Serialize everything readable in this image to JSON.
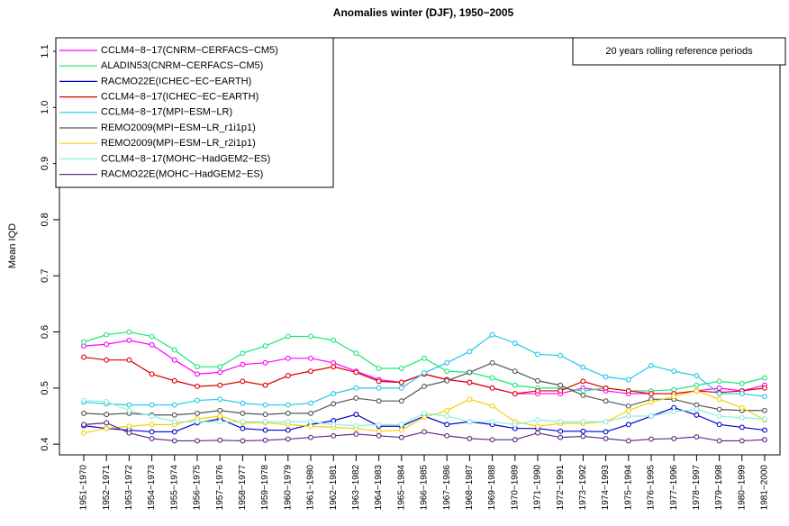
{
  "chart_data": {
    "type": "line",
    "title": "Anomalies winter (DJF), 1950−2005",
    "y_label": "Mean IQD",
    "annotation": "20 years rolling reference periods",
    "categories": [
      "1951−1970",
      "1952−1971",
      "1953−1972",
      "1954−1973",
      "1955−1974",
      "1956−1975",
      "1957−1976",
      "1958−1977",
      "1959−1978",
      "1960−1979",
      "1961−1980",
      "1962−1981",
      "1963−1982",
      "1964−1983",
      "1965−1984",
      "1966−1985",
      "1967−1986",
      "1968−1987",
      "1969−1988",
      "1970−1989",
      "1971−1990",
      "1972−1991",
      "1973−1992",
      "1974−1993",
      "1975−1994",
      "1976−1995",
      "1977−1996",
      "1978−1997",
      "1979−1998",
      "1980−1999",
      "1981−2000"
    ],
    "ylim": [
      0.381,
      1.124
    ],
    "yticks": [
      0.4,
      0.5,
      0.6,
      0.7,
      0.8,
      0.9,
      {
        "value": 1,
        "label": "1.0"
      },
      1.1
    ],
    "legend_position": "top-left",
    "series": [
      {
        "name": "CCLM4−8−17(CNRM−CERFACS−CM5)",
        "color": "#ff00ff",
        "values": [
          0.575,
          0.578,
          0.585,
          0.577,
          0.55,
          0.525,
          0.528,
          0.542,
          0.545,
          0.553,
          0.553,
          0.545,
          0.53,
          0.515,
          0.51,
          0.525,
          0.515,
          0.51,
          0.5,
          0.49,
          0.49,
          0.49,
          0.5,
          0.495,
          0.49,
          0.49,
          0.49,
          0.495,
          0.5,
          0.495,
          0.505
        ]
      },
      {
        "name": "ALADIN53(CNRM−CERFACS−CM5)",
        "color": "#1ee67a",
        "values": [
          0.582,
          0.595,
          0.6,
          0.592,
          0.568,
          0.538,
          0.538,
          0.562,
          0.575,
          0.592,
          0.592,
          0.585,
          0.562,
          0.535,
          0.535,
          0.553,
          0.53,
          0.528,
          0.518,
          0.505,
          0.5,
          0.5,
          0.495,
          0.5,
          0.495,
          0.495,
          0.497,
          0.505,
          0.512,
          0.508,
          0.518
        ]
      },
      {
        "name": "RACMO22E(ICHEC−EC−EARTH)",
        "color": "#0000cc",
        "values": [
          0.433,
          0.428,
          0.425,
          0.422,
          0.422,
          0.438,
          0.445,
          0.428,
          0.425,
          0.425,
          0.435,
          0.442,
          0.453,
          0.432,
          0.432,
          0.45,
          0.435,
          0.44,
          0.435,
          0.428,
          0.428,
          0.423,
          0.423,
          0.422,
          0.435,
          0.45,
          0.465,
          0.452,
          0.435,
          0.43,
          0.425
        ]
      },
      {
        "name": "CCLM4−8−17(ICHEC−EC−EARTH)",
        "color": "#dd0000",
        "values": [
          0.555,
          0.55,
          0.55,
          0.525,
          0.513,
          0.503,
          0.505,
          0.512,
          0.505,
          0.522,
          0.53,
          0.538,
          0.528,
          0.512,
          0.51,
          0.525,
          0.515,
          0.51,
          0.5,
          0.49,
          0.495,
          0.495,
          0.512,
          0.5,
          0.495,
          0.49,
          0.49,
          0.495,
          0.492,
          0.495,
          0.5
        ]
      },
      {
        "name": "CCLM4−8−17(MPI−ESM−LR)",
        "color": "#1ec8e8",
        "values": [
          0.475,
          0.472,
          0.47,
          0.47,
          0.47,
          0.478,
          0.48,
          0.473,
          0.47,
          0.47,
          0.473,
          0.49,
          0.5,
          0.5,
          0.5,
          0.527,
          0.545,
          0.565,
          0.595,
          0.58,
          0.56,
          0.558,
          0.537,
          0.52,
          0.515,
          0.54,
          0.53,
          0.522,
          0.49,
          0.49,
          0.485
        ]
      },
      {
        "name": "REMO2009(MPI−ESM−LR_r1i1p1)",
        "color": "#555555",
        "values": [
          0.455,
          0.453,
          0.455,
          0.452,
          0.452,
          0.455,
          0.46,
          0.455,
          0.453,
          0.455,
          0.455,
          0.472,
          0.482,
          0.477,
          0.477,
          0.503,
          0.513,
          0.528,
          0.545,
          0.53,
          0.513,
          0.505,
          0.487,
          0.477,
          0.468,
          0.48,
          0.48,
          0.47,
          0.462,
          0.46,
          0.46
        ]
      },
      {
        "name": "REMO2009(MPI−ESM−LR_r2i1p1)",
        "color": "#f5d000",
        "values": [
          0.42,
          0.428,
          0.432,
          0.435,
          0.435,
          0.445,
          0.45,
          0.438,
          0.438,
          0.435,
          0.432,
          0.43,
          0.428,
          0.423,
          0.425,
          0.448,
          0.46,
          0.48,
          0.468,
          0.44,
          0.432,
          0.437,
          0.437,
          0.44,
          0.46,
          0.475,
          0.485,
          0.495,
          0.48,
          0.465,
          0.443
        ]
      },
      {
        "name": "CCLM4−8−17(MOHC−HadGEM2−ES)",
        "color": "#8eeede",
        "values": [
          0.478,
          0.476,
          0.46,
          0.45,
          0.44,
          0.44,
          0.44,
          0.44,
          0.44,
          0.44,
          0.44,
          0.435,
          0.433,
          0.435,
          0.435,
          0.455,
          0.45,
          0.44,
          0.44,
          0.435,
          0.443,
          0.44,
          0.44,
          0.44,
          0.45,
          0.45,
          0.458,
          0.462,
          0.45,
          0.447,
          0.445
        ]
      },
      {
        "name": "RACMO22E(MOHC−HadGEM2−ES)",
        "color": "#5b2a86",
        "values": [
          0.435,
          0.438,
          0.42,
          0.41,
          0.406,
          0.406,
          0.407,
          0.406,
          0.407,
          0.409,
          0.412,
          0.415,
          0.418,
          0.415,
          0.412,
          0.422,
          0.415,
          0.41,
          0.408,
          0.408,
          0.42,
          0.412,
          0.414,
          0.41,
          0.406,
          0.409,
          0.41,
          0.413,
          0.406,
          0.406,
          0.408
        ]
      }
    ]
  }
}
